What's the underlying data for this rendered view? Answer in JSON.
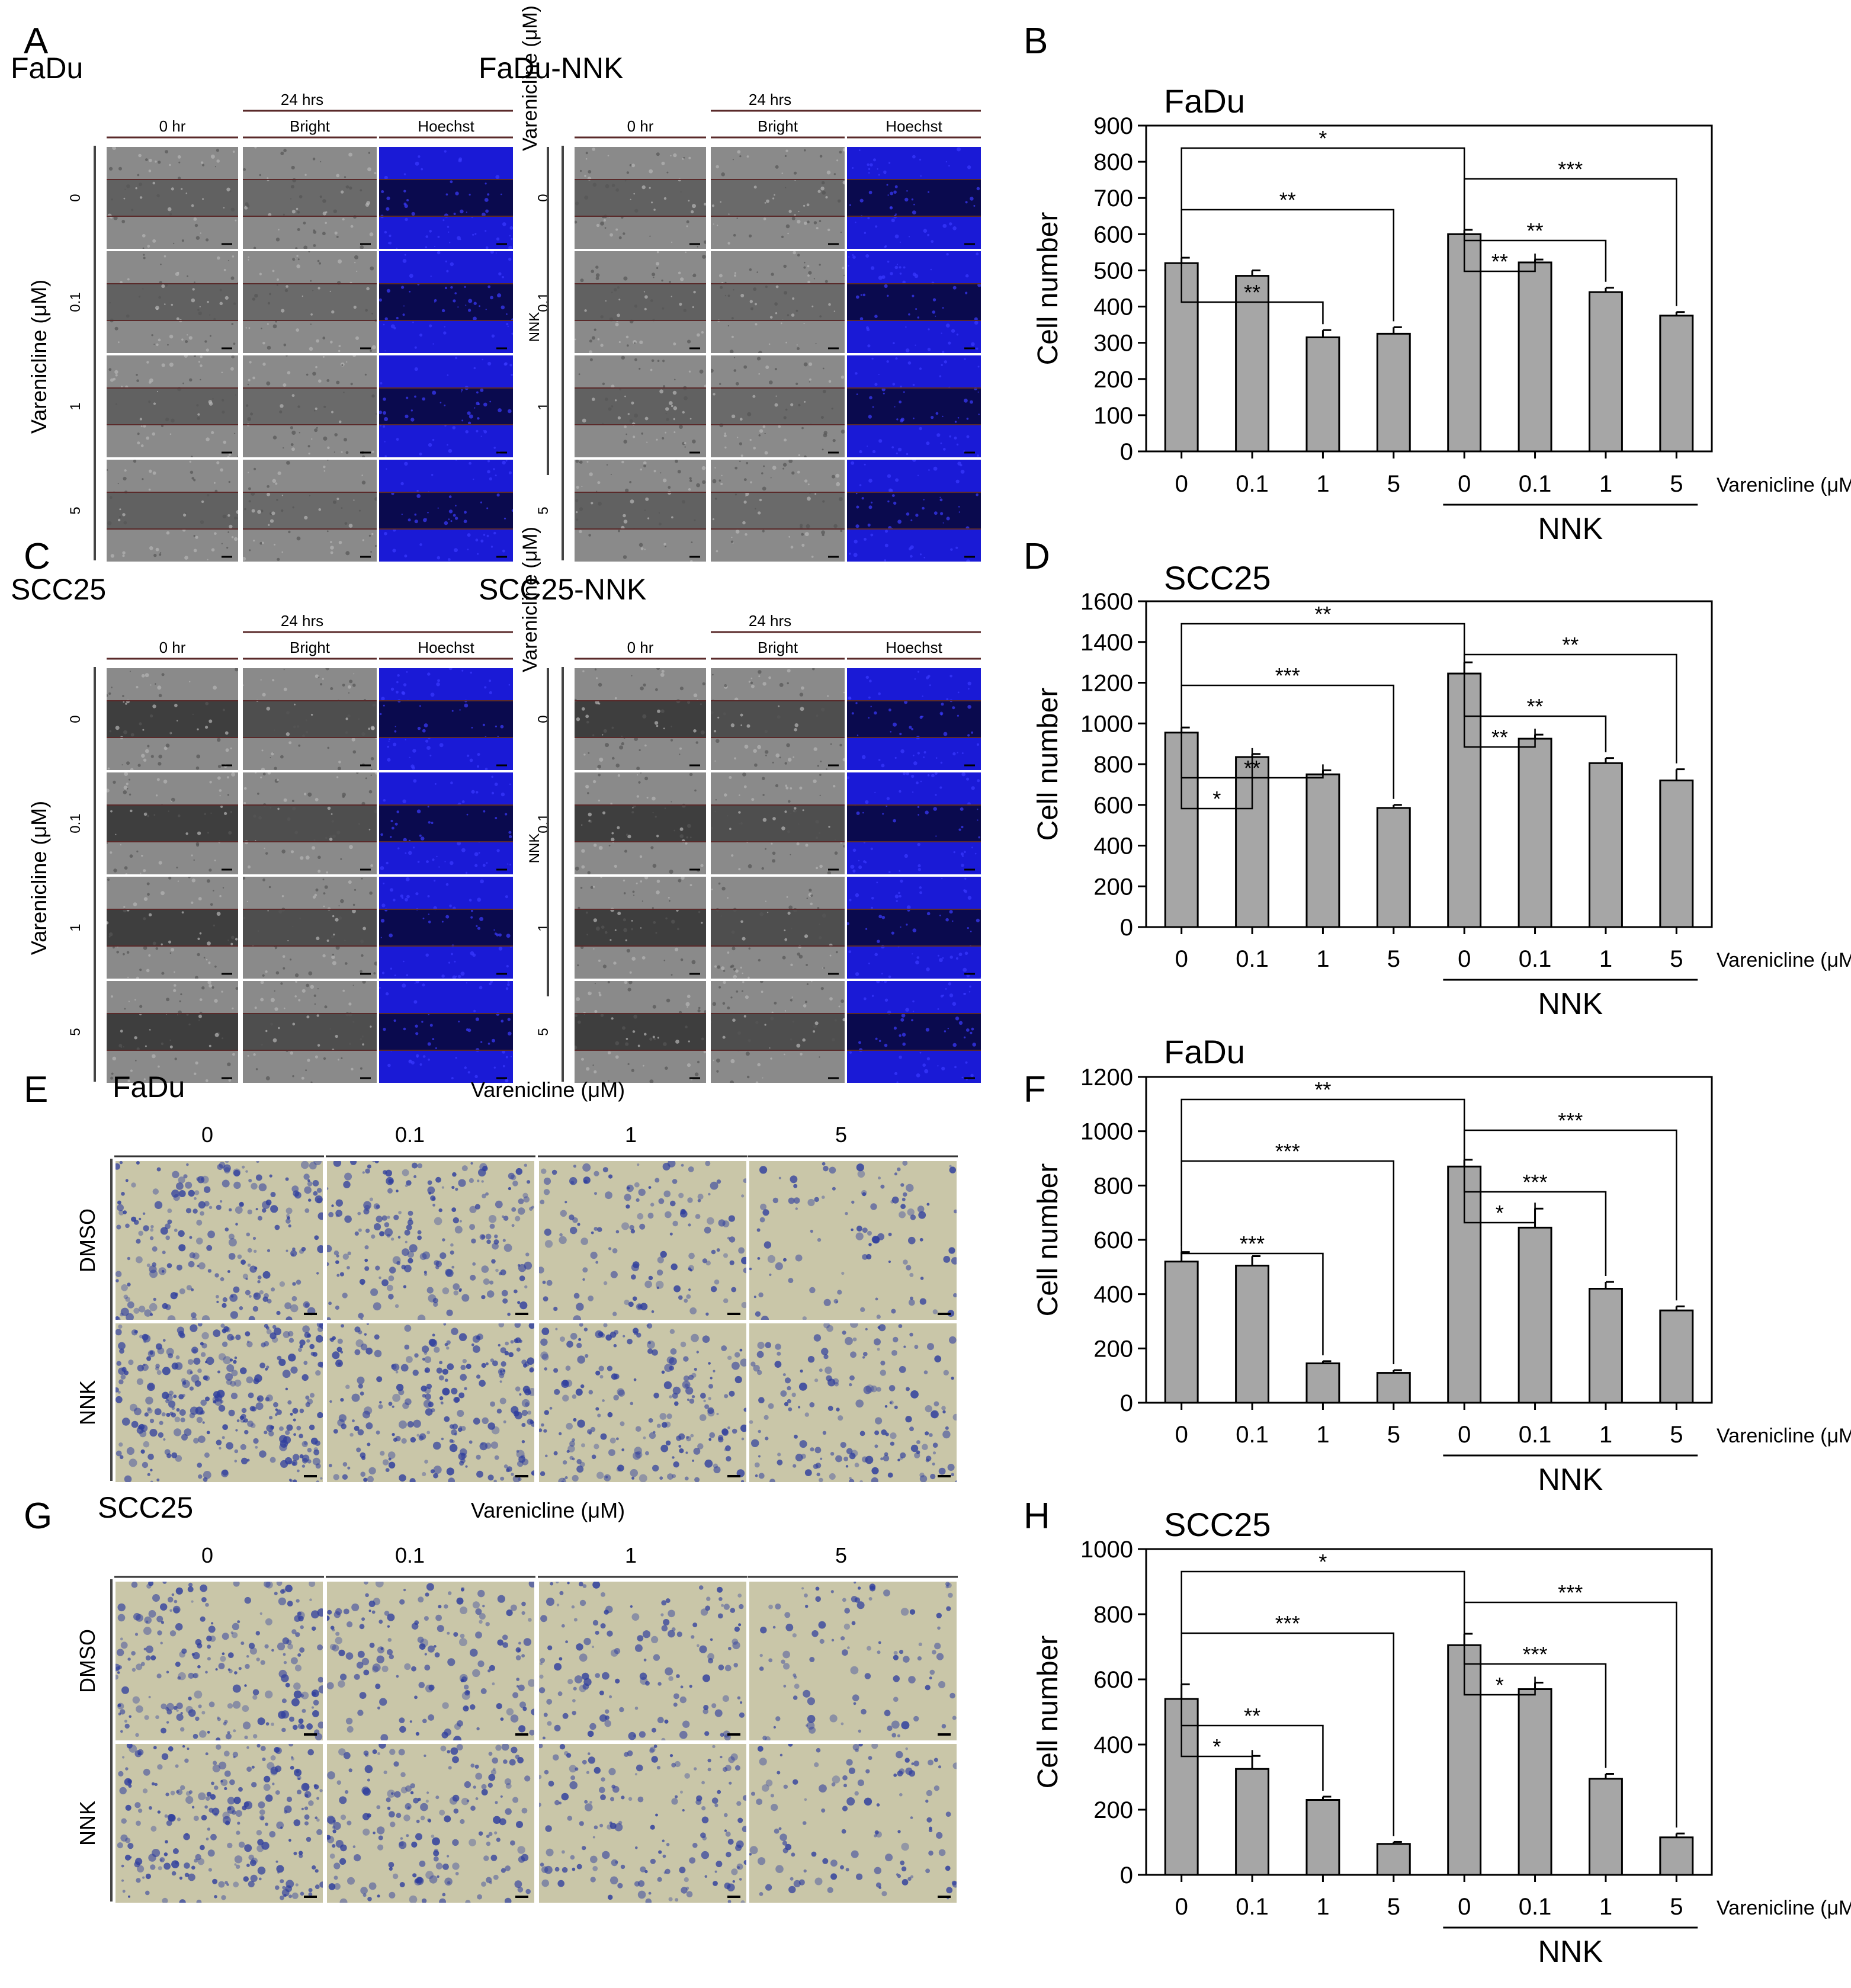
{
  "panel_letters": [
    "A",
    "B",
    "C",
    "D",
    "E",
    "F",
    "G",
    "H"
  ],
  "wound_panels": [
    {
      "letter": "A",
      "left": {
        "cell_line": "FaDu"
      },
      "right": {
        "cell_line": "FaDu-NNK"
      },
      "time_0": "0 hr",
      "time_24": "24 hrs",
      "bright": "Bright",
      "hoechst": "Hoechst",
      "row_labels": [
        "0",
        "0.1",
        "1",
        "5"
      ],
      "left_axis": "Varenicline (μM)",
      "right_axis": "Varenicline (μM)",
      "nnk_label": "NNK",
      "colors": {
        "bright_base": "#8a8a8a",
        "gap": "#5f5f5f",
        "hoechst": "#1a1ad6",
        "hoechst_gap": "#050520",
        "line": "#5a2a2a"
      }
    },
    {
      "letter": "C",
      "left": {
        "cell_line": "SCC25"
      },
      "right": {
        "cell_line": "SCC25-NNK"
      },
      "time_0": "0 hr",
      "time_24": "24 hrs",
      "bright": "Bright",
      "hoechst": "Hoechst",
      "row_labels": [
        "0",
        "0.1",
        "1",
        "5"
      ],
      "left_axis": "Varenicline (μM)",
      "right_axis": "Varenicline (μM)",
      "nnk_label": "NNK",
      "colors": {
        "bright_base": "#8a8a8a",
        "gap": "#3a3a3a",
        "hoechst": "#1a1ad6",
        "hoechst_gap": "#050520",
        "line": "#5a2a2a"
      }
    }
  ],
  "transwell_panels": [
    {
      "letter": "E",
      "cell_line": "FaDu",
      "treatment_title": "Varenicline (μM)",
      "columns": [
        "0",
        "0.1",
        "1",
        "5"
      ],
      "rows": [
        "DMSO",
        "NNK"
      ],
      "stain_density": [
        [
          0.55,
          0.5,
          0.3,
          0.18
        ],
        [
          0.8,
          0.62,
          0.5,
          0.38
        ]
      ],
      "colors": {
        "background": "#c9c6a8",
        "stain": "#2f3e9e"
      }
    },
    {
      "letter": "G",
      "cell_line": "SCC25",
      "treatment_title": "Varenicline (μM)",
      "columns": [
        "0",
        "0.1",
        "1",
        "5"
      ],
      "rows": [
        "DMSO",
        "NNK"
      ],
      "stain_density": [
        [
          0.55,
          0.35,
          0.3,
          0.18
        ],
        [
          0.6,
          0.45,
          0.35,
          0.22
        ]
      ],
      "colors": {
        "background": "#c9c6a8",
        "stain": "#2f3e9e"
      }
    }
  ],
  "chart_data": [
    {
      "panel": "B",
      "type": "bar",
      "title": "FaDu",
      "categories": [
        "0",
        "0.1",
        "1",
        "5",
        "0",
        "0.1",
        "1",
        "5"
      ],
      "values": [
        520,
        485,
        315,
        325,
        600,
        522,
        440,
        375
      ],
      "errors": [
        15,
        15,
        20,
        18,
        12,
        8,
        12,
        10
      ],
      "ylim": [
        0,
        900
      ],
      "yticks": [
        0,
        100,
        200,
        300,
        400,
        500,
        600,
        700,
        800,
        900
      ],
      "ylabel": "Cell number",
      "xlabel": "Varenicline (μM)",
      "group_label": "NNK",
      "bar_color": "#a6a6a6",
      "significance": [
        {
          "from": 4,
          "to": 0,
          "label": "*"
        },
        {
          "from": 4,
          "to": 7,
          "label": "***"
        },
        {
          "from": 0,
          "to": 3,
          "label": "**"
        },
        {
          "from": 4,
          "to": 6,
          "label": "**"
        },
        {
          "from": 4,
          "to": 5,
          "label": "**"
        },
        {
          "from": 0,
          "to": 2,
          "label": "**"
        }
      ]
    },
    {
      "panel": "D",
      "type": "bar",
      "title": "SCC25",
      "categories": [
        "0",
        "0.1",
        "1",
        "5",
        "0",
        "0.1",
        "1",
        "5"
      ],
      "values": [
        955,
        835,
        750,
        585,
        1245,
        925,
        805,
        720
      ],
      "errors": [
        25,
        15,
        20,
        15,
        55,
        20,
        25,
        55
      ],
      "ylim": [
        0,
        1600
      ],
      "yticks": [
        0,
        200,
        400,
        600,
        800,
        1000,
        1200,
        1400,
        1600
      ],
      "ylabel": "Cell number",
      "xlabel": "Varenicline (μM)",
      "group_label": "NNK",
      "bar_color": "#a6a6a6",
      "significance": [
        {
          "from": 4,
          "to": 0,
          "label": "**"
        },
        {
          "from": 4,
          "to": 7,
          "label": "**"
        },
        {
          "from": 0,
          "to": 3,
          "label": "***"
        },
        {
          "from": 4,
          "to": 6,
          "label": "**"
        },
        {
          "from": 4,
          "to": 5,
          "label": "**"
        },
        {
          "from": 0,
          "to": 2,
          "label": "**"
        },
        {
          "from": 0,
          "to": 1,
          "label": "*"
        }
      ]
    },
    {
      "panel": "F",
      "type": "bar",
      "title": "FaDu",
      "categories": [
        "0",
        "0.1",
        "1",
        "5",
        "0",
        "0.1",
        "1",
        "5"
      ],
      "values": [
        520,
        505,
        145,
        110,
        870,
        645,
        420,
        340
      ],
      "errors": [
        35,
        35,
        8,
        10,
        25,
        70,
        25,
        15
      ],
      "ylim": [
        0,
        1200
      ],
      "yticks": [
        0,
        200,
        400,
        600,
        800,
        1000,
        1200
      ],
      "ylabel": "Cell number",
      "xlabel": "Varenicline (μM)",
      "group_label": "NNK",
      "bar_color": "#a6a6a6",
      "significance": [
        {
          "from": 4,
          "to": 0,
          "label": "**"
        },
        {
          "from": 4,
          "to": 7,
          "label": "***"
        },
        {
          "from": 0,
          "to": 3,
          "label": "***"
        },
        {
          "from": 4,
          "to": 6,
          "label": "***"
        },
        {
          "from": 4,
          "to": 5,
          "label": "*"
        },
        {
          "from": 0,
          "to": 2,
          "label": "***"
        }
      ]
    },
    {
      "panel": "H",
      "type": "bar",
      "title": "SCC25",
      "categories": [
        "0",
        "0.1",
        "1",
        "5",
        "0",
        "0.1",
        "1",
        "5"
      ],
      "values": [
        540,
        325,
        230,
        95,
        705,
        570,
        295,
        115
      ],
      "errors": [
        45,
        40,
        10,
        6,
        35,
        20,
        15,
        12
      ],
      "ylim": [
        0,
        1000
      ],
      "yticks": [
        0,
        200,
        400,
        600,
        800,
        1000
      ],
      "ylabel": "Cell number",
      "xlabel": "Varenicline (μM)",
      "group_label": "NNK",
      "bar_color": "#a6a6a6",
      "significance": [
        {
          "from": 4,
          "to": 0,
          "label": "*"
        },
        {
          "from": 4,
          "to": 7,
          "label": "***"
        },
        {
          "from": 0,
          "to": 3,
          "label": "***"
        },
        {
          "from": 4,
          "to": 6,
          "label": "***"
        },
        {
          "from": 4,
          "to": 5,
          "label": "*"
        },
        {
          "from": 0,
          "to": 2,
          "label": "**"
        },
        {
          "from": 0,
          "to": 1,
          "label": "*"
        }
      ]
    }
  ]
}
